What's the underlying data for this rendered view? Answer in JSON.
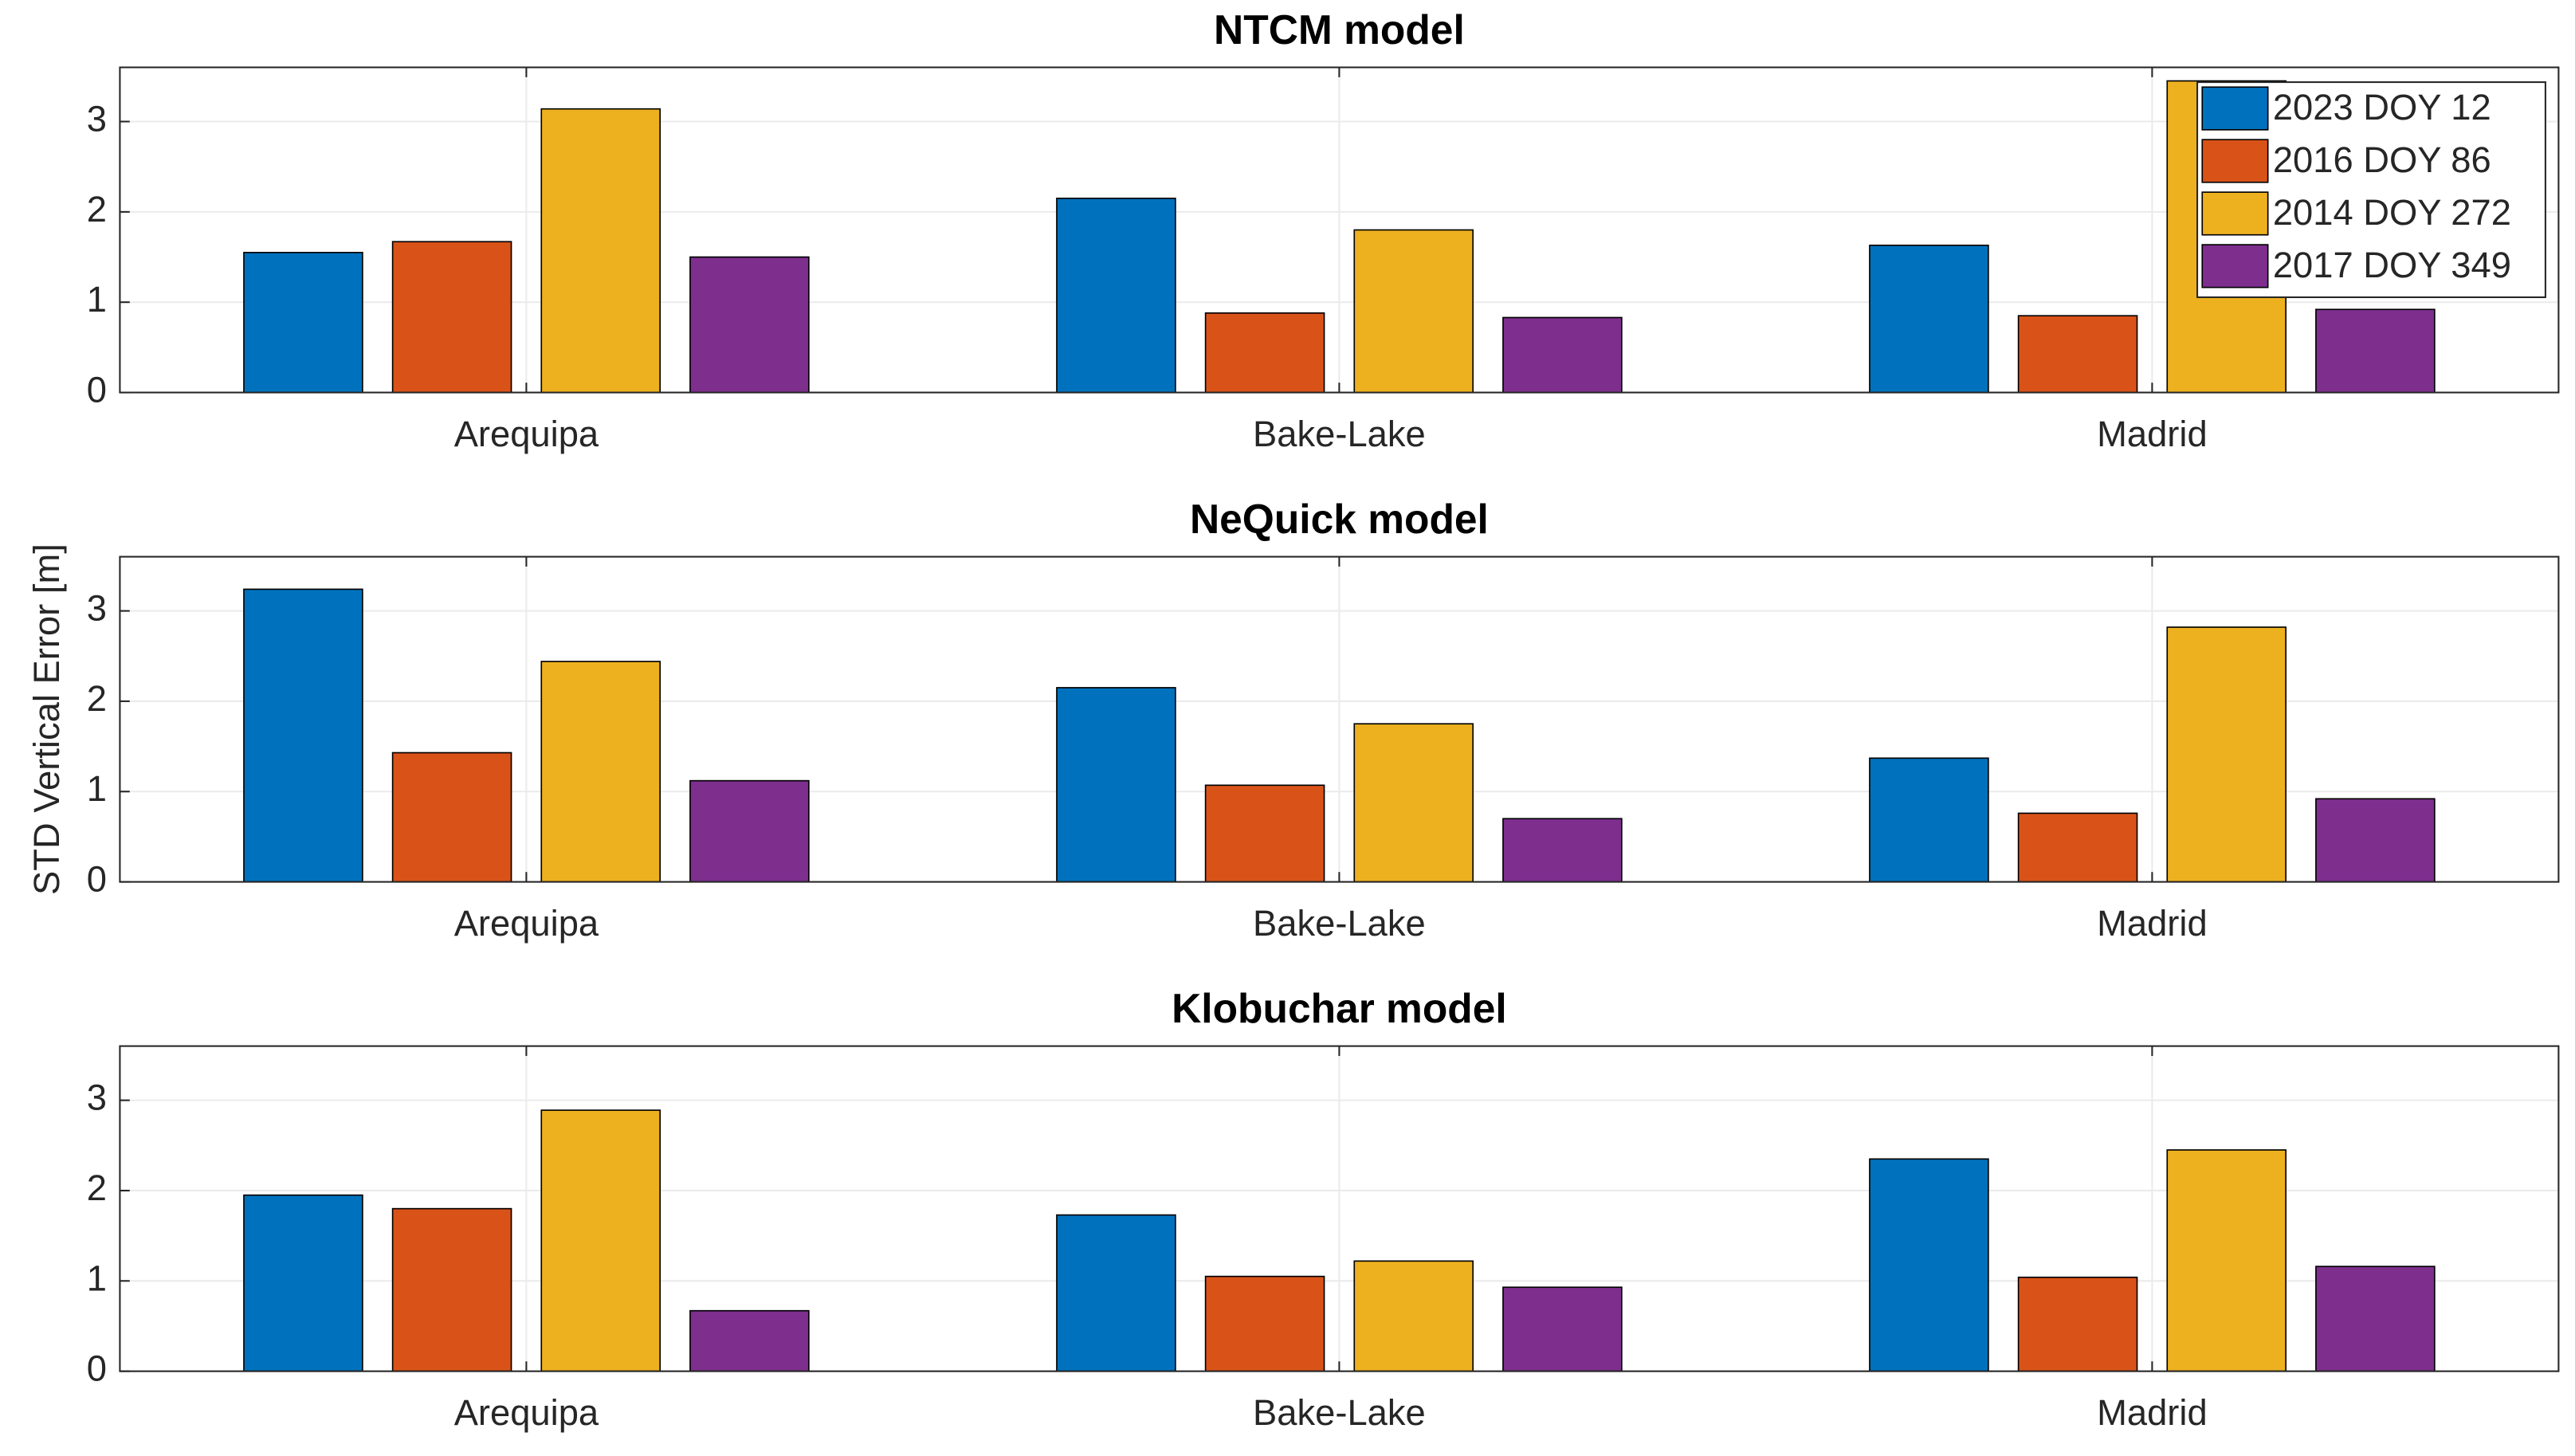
{
  "ylabel": "STD Vertical Error [m]",
  "chart_data": [
    {
      "type": "bar",
      "title": "NTCM model",
      "categories": [
        "Arequipa",
        "Bake-Lake",
        "Madrid"
      ],
      "series": [
        {
          "name": "2023 DOY 12",
          "color": "#0072bd",
          "values": [
            1.55,
            2.15,
            1.63
          ]
        },
        {
          "name": "2016 DOY 86",
          "color": "#d95319",
          "values": [
            1.67,
            0.88,
            0.85
          ]
        },
        {
          "name": "2014 DOY 272",
          "color": "#edb120",
          "values": [
            3.14,
            1.8,
            3.45
          ]
        },
        {
          "name": "2017 DOY 349",
          "color": "#7e2f8e",
          "values": [
            1.5,
            0.83,
            0.92
          ]
        }
      ],
      "ylim": [
        0,
        3.6
      ],
      "yticks": [
        0,
        1,
        2,
        3
      ],
      "grid": true,
      "legend": "northeast"
    },
    {
      "type": "bar",
      "title": "NeQuick model",
      "categories": [
        "Arequipa",
        "Bake-Lake",
        "Madrid"
      ],
      "series": [
        {
          "color": "#0072bd",
          "values": [
            3.24,
            2.15,
            1.37
          ]
        },
        {
          "color": "#d95319",
          "values": [
            1.43,
            1.07,
            0.76
          ]
        },
        {
          "color": "#edb120",
          "values": [
            2.44,
            1.75,
            2.82
          ]
        },
        {
          "color": "#7e2f8e",
          "values": [
            1.12,
            0.7,
            0.92
          ]
        }
      ],
      "ylim": [
        0,
        3.6
      ],
      "yticks": [
        0,
        1,
        2,
        3
      ],
      "grid": true
    },
    {
      "type": "bar",
      "title": "Klobuchar model",
      "categories": [
        "Arequipa",
        "Bake-Lake",
        "Madrid"
      ],
      "series": [
        {
          "color": "#0072bd",
          "values": [
            1.95,
            1.73,
            2.35
          ]
        },
        {
          "color": "#d95319",
          "values": [
            1.8,
            1.05,
            1.04
          ]
        },
        {
          "color": "#edb120",
          "values": [
            2.89,
            1.22,
            2.45
          ]
        },
        {
          "color": "#7e2f8e",
          "values": [
            0.67,
            0.93,
            1.16
          ]
        }
      ],
      "ylim": [
        0,
        3.6
      ],
      "yticks": [
        0,
        1,
        2,
        3
      ],
      "grid": true
    }
  ]
}
